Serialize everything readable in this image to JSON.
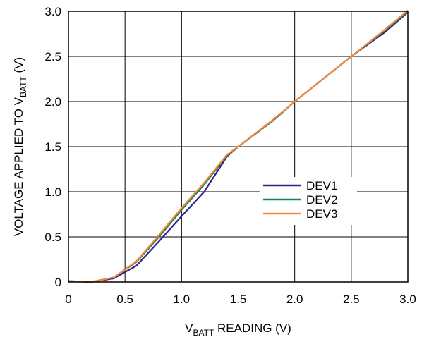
{
  "chart_data": {
    "type": "line",
    "xlabel": {
      "prefix": "V",
      "sub": "BATT",
      "suffix": " READING (V)"
    },
    "ylabel": {
      "prefix": "VOLTAGE APPLIED TO V",
      "sub": "BATT",
      "suffix": " (V)"
    },
    "xlim": [
      0,
      3.0
    ],
    "ylim": [
      0,
      3.0
    ],
    "xticks": [
      0,
      0.5,
      1.0,
      1.5,
      2.0,
      2.5,
      3.0
    ],
    "xtick_labels": [
      "0",
      "0.5",
      "1.0",
      "1.5",
      "2.0",
      "2.5",
      "3.0"
    ],
    "yticks": [
      0,
      0.5,
      1.0,
      1.5,
      2.0,
      2.5,
      3.0
    ],
    "ytick_labels": [
      "0",
      "0.5",
      "1.0",
      "1.5",
      "2.0",
      "2.5",
      "3.0"
    ],
    "grid": true,
    "legend_position": "right",
    "series": [
      {
        "name": "DEV1",
        "color": "#3a1d8f",
        "points": [
          [
            0,
            0.01
          ],
          [
            0.2,
            0.0
          ],
          [
            0.4,
            0.04
          ],
          [
            0.6,
            0.18
          ],
          [
            0.8,
            0.45
          ],
          [
            1.0,
            0.73
          ],
          [
            1.2,
            1.0
          ],
          [
            1.4,
            1.39
          ],
          [
            1.5,
            1.5
          ],
          [
            1.8,
            1.78
          ],
          [
            2.0,
            2.0
          ],
          [
            2.5,
            2.5
          ],
          [
            2.8,
            2.77
          ],
          [
            3.0,
            2.99
          ]
        ]
      },
      {
        "name": "DEV2",
        "color": "#0f8a4e",
        "points": [
          [
            0,
            0.01
          ],
          [
            0.2,
            0.0
          ],
          [
            0.4,
            0.05
          ],
          [
            0.6,
            0.22
          ],
          [
            0.8,
            0.5
          ],
          [
            1.0,
            0.8
          ],
          [
            1.2,
            1.08
          ],
          [
            1.4,
            1.4
          ],
          [
            1.5,
            1.5
          ],
          [
            1.8,
            1.78
          ],
          [
            2.0,
            2.0
          ],
          [
            2.5,
            2.5
          ],
          [
            2.8,
            2.79
          ],
          [
            3.0,
            3.0
          ]
        ]
      },
      {
        "name": "DEV3",
        "color": "#f5893e",
        "points": [
          [
            0,
            0.01
          ],
          [
            0.2,
            0.0
          ],
          [
            0.4,
            0.05
          ],
          [
            0.6,
            0.23
          ],
          [
            0.8,
            0.52
          ],
          [
            1.0,
            0.82
          ],
          [
            1.2,
            1.1
          ],
          [
            1.4,
            1.41
          ],
          [
            1.5,
            1.5
          ],
          [
            1.8,
            1.79
          ],
          [
            2.0,
            2.0
          ],
          [
            2.5,
            2.5
          ],
          [
            2.8,
            2.8
          ],
          [
            3.0,
            3.01
          ]
        ]
      }
    ]
  }
}
